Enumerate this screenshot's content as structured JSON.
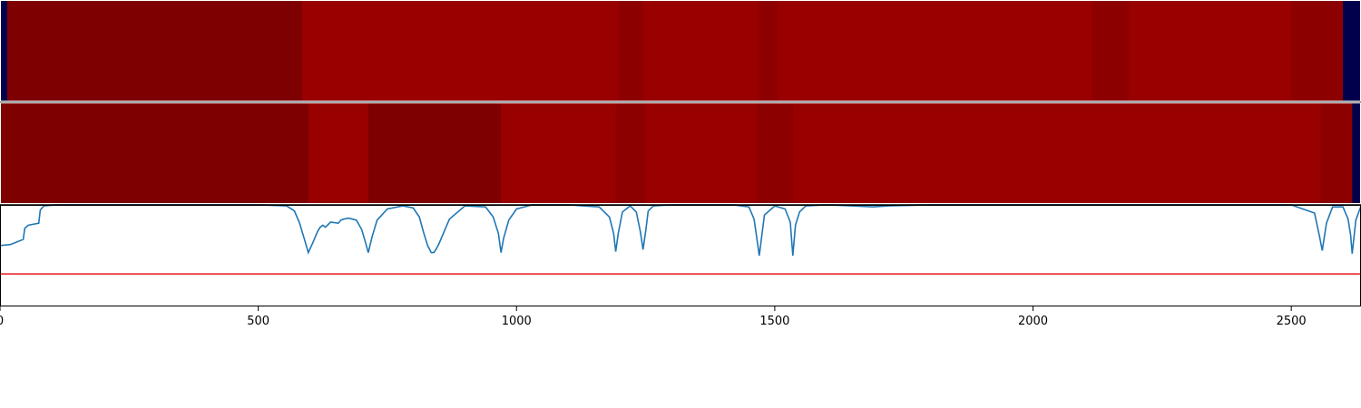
{
  "chart_data": {
    "type": "heatmap",
    "xlim": [
      0,
      2635
    ],
    "x_ticks": [
      0,
      500,
      1000,
      1500,
      2000,
      2500
    ],
    "x_tick_labels": [
      "0",
      "500",
      "1000",
      "1500",
      "2000",
      "2500"
    ],
    "colors": {
      "dark_red": "#7f0000",
      "red": "#990000",
      "mid_red": "#8c0000",
      "navy": "#00004c",
      "line": "#1f77b4",
      "threshold": "#e41a1c"
    },
    "heatmap_rows": [
      {
        "segments": [
          {
            "x0": 0,
            "x1": 14,
            "color": "navy"
          },
          {
            "x0": 14,
            "x1": 585,
            "color": "dark_red"
          },
          {
            "x0": 585,
            "x1": 1197,
            "color": "red"
          },
          {
            "x0": 1197,
            "x1": 1245,
            "color": "mid_red"
          },
          {
            "x0": 1245,
            "x1": 1470,
            "color": "red"
          },
          {
            "x0": 1470,
            "x1": 1505,
            "color": "mid_red"
          },
          {
            "x0": 1505,
            "x1": 2115,
            "color": "red"
          },
          {
            "x0": 2115,
            "x1": 2185,
            "color": "mid_red"
          },
          {
            "x0": 2185,
            "x1": 2500,
            "color": "red"
          },
          {
            "x0": 2500,
            "x1": 2600,
            "color": "mid_red"
          },
          {
            "x0": 2600,
            "x1": 2635,
            "color": "navy"
          }
        ]
      },
      {
        "segments": [
          {
            "x0": 0,
            "x1": 597,
            "color": "dark_red"
          },
          {
            "x0": 597,
            "x1": 713,
            "color": "red"
          },
          {
            "x0": 713,
            "x1": 840,
            "color": "dark_red"
          },
          {
            "x0": 840,
            "x1": 970,
            "color": "dark_red"
          },
          {
            "x0": 970,
            "x1": 1192,
            "color": "red"
          },
          {
            "x0": 1192,
            "x1": 1250,
            "color": "mid_red"
          },
          {
            "x0": 1250,
            "x1": 1465,
            "color": "red"
          },
          {
            "x0": 1465,
            "x1": 1535,
            "color": "mid_red"
          },
          {
            "x0": 1535,
            "x1": 2557,
            "color": "red"
          },
          {
            "x0": 2557,
            "x1": 2618,
            "color": "mid_red"
          },
          {
            "x0": 2618,
            "x1": 2635,
            "color": "navy"
          }
        ]
      }
    ],
    "line_ylim": [
      0,
      1
    ],
    "threshold": 0.32,
    "line_series": {
      "x": [
        0,
        20,
        45,
        48,
        55,
        75,
        78,
        85,
        110,
        200,
        500,
        555,
        570,
        580,
        590,
        597,
        605,
        615,
        620,
        625,
        630,
        640,
        655,
        660,
        665,
        675,
        690,
        700,
        707,
        713,
        720,
        730,
        750,
        780,
        800,
        812,
        820,
        828,
        835,
        840,
        845,
        850,
        870,
        900,
        940,
        955,
        965,
        970,
        975,
        985,
        1000,
        1030,
        1100,
        1160,
        1180,
        1188,
        1192,
        1197,
        1205,
        1220,
        1232,
        1240,
        1245,
        1250,
        1255,
        1265,
        1300,
        1420,
        1450,
        1460,
        1465,
        1470,
        1480,
        1500,
        1520,
        1530,
        1535,
        1540,
        1548,
        1560,
        1600,
        1650,
        1690,
        1720,
        1800,
        2000,
        2500,
        2545,
        2555,
        2560,
        2568,
        2580,
        2600,
        2610,
        2615,
        2618,
        2625,
        2635
      ],
      "y": [
        0.6,
        0.61,
        0.66,
        0.77,
        0.8,
        0.82,
        0.95,
        0.99,
        1.0,
        1.0,
        1.0,
        0.99,
        0.94,
        0.82,
        0.65,
        0.53,
        0.62,
        0.74,
        0.78,
        0.8,
        0.78,
        0.83,
        0.82,
        0.85,
        0.86,
        0.87,
        0.85,
        0.76,
        0.64,
        0.53,
        0.68,
        0.85,
        0.96,
        0.99,
        0.97,
        0.88,
        0.73,
        0.6,
        0.53,
        0.53,
        0.57,
        0.62,
        0.86,
        0.99,
        0.98,
        0.88,
        0.72,
        0.53,
        0.67,
        0.85,
        0.96,
        1.0,
        1.0,
        0.98,
        0.88,
        0.72,
        0.54,
        0.72,
        0.93,
        0.99,
        0.93,
        0.73,
        0.56,
        0.74,
        0.94,
        0.99,
        1.0,
        1.0,
        0.98,
        0.86,
        0.68,
        0.5,
        0.9,
        0.99,
        0.96,
        0.83,
        0.5,
        0.8,
        0.93,
        0.99,
        1.0,
        0.99,
        0.98,
        0.99,
        1.0,
        1.0,
        1.0,
        0.92,
        0.68,
        0.55,
        0.82,
        0.98,
        0.98,
        0.86,
        0.7,
        0.52,
        0.85,
        0.99
      ]
    }
  }
}
